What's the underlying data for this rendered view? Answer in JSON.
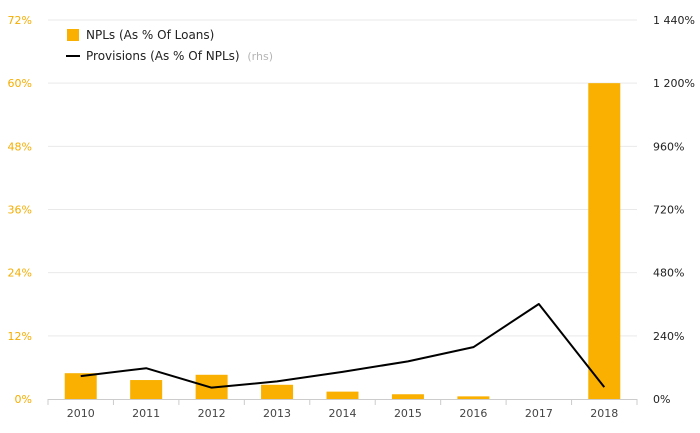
{
  "chart_data": {
    "type": "bar",
    "categories": [
      "2010",
      "2011",
      "2012",
      "2013",
      "2014",
      "2015",
      "2016",
      "2017",
      "2018"
    ],
    "series": [
      {
        "name": "NPLs (As % Of Loans)",
        "type": "bar",
        "axis": "left",
        "color": "#f9b000",
        "values": [
          4.9,
          3.6,
          4.6,
          2.7,
          1.4,
          0.9,
          0.5,
          0.0,
          60.0
        ]
      },
      {
        "name": "Provisions (As % Of NPLs)",
        "name_suffix": "(rhs)",
        "type": "line",
        "axis": "right",
        "color": "#000000",
        "values": [
          87,
          117,
          43,
          67,
          103,
          143,
          197,
          361,
          45
        ]
      }
    ],
    "y_left": {
      "ylim": [
        0,
        72
      ],
      "ticks": [
        "0%",
        "12%",
        "24%",
        "36%",
        "48%",
        "60%",
        "72%"
      ],
      "color": "#f5ad00"
    },
    "y_right": {
      "ylim": [
        0,
        1440
      ],
      "ticks": [
        "0%",
        "240%",
        "480%",
        "720%",
        "960%",
        "1 200%",
        "1 440%"
      ],
      "color": "#222222"
    },
    "grid": true,
    "legend_position": "top-left"
  }
}
